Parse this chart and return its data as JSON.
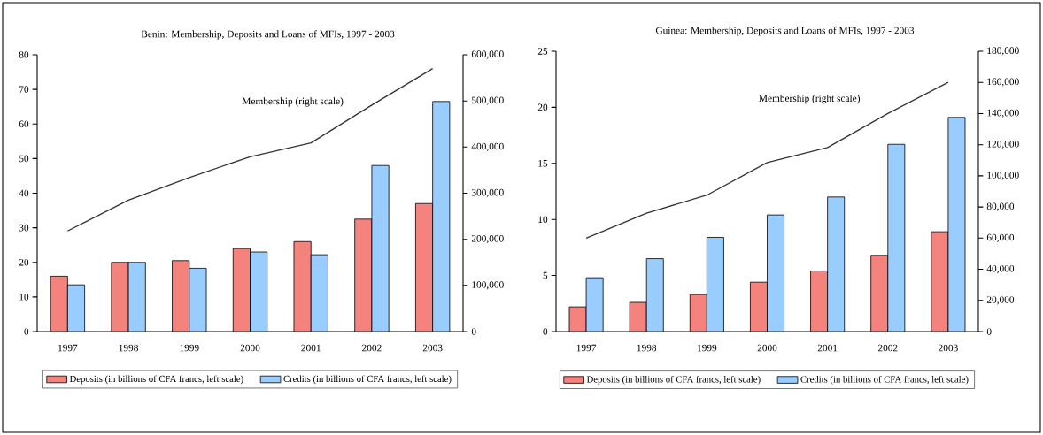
{
  "chart_data": [
    {
      "type": "bar",
      "title": "Benin: Membership, Deposits and Loans of MFIs, 1997 - 2003",
      "categories": [
        "1997",
        "1998",
        "1999",
        "2000",
        "2001",
        "2002",
        "2003"
      ],
      "series": [
        {
          "name": "Deposits (in billions of CFA francs, left scale)",
          "color": "#f4837d",
          "values": [
            16,
            20,
            20.5,
            24,
            26,
            32.5,
            37
          ]
        },
        {
          "name": "Credits (in billions of CFA francs, left scale)",
          "color": "#99ccff",
          "values": [
            13.5,
            20,
            18.3,
            23,
            22.2,
            48,
            66.5
          ]
        },
        {
          "name": "Membership (right scale)",
          "type": "line",
          "axis": "y2",
          "color": "#333333",
          "values": [
            218000,
            285000,
            334000,
            379000,
            409000,
            491000,
            570000
          ]
        }
      ],
      "ylim": [
        0,
        80
      ],
      "yticks": [
        0,
        10,
        20,
        30,
        40,
        50,
        60,
        70,
        80
      ],
      "y2lim": [
        0,
        600000
      ],
      "y2ticks": [
        {
          "value": 0,
          "label": "0"
        },
        {
          "value": 100000,
          "label": "100,000"
        },
        {
          "value": 200000,
          "label": "200,000"
        },
        {
          "value": 300000,
          "label": "300,000"
        },
        {
          "value": 400000,
          "label": "400,000"
        },
        {
          "value": 500000,
          "label": "500,000"
        },
        {
          "value": 600000,
          "label": "600,000"
        }
      ],
      "legend": "bottom"
    },
    {
      "type": "bar",
      "title": "Guinea: Membership, Deposits and Loans of MFIs, 1997 - 2003",
      "categories": [
        "1997",
        "1998",
        "1999",
        "2000",
        "2001",
        "2002",
        "2003"
      ],
      "series": [
        {
          "name": "Deposits (in billions of CFA francs, left scale)",
          "color": "#f4837d",
          "values": [
            2.2,
            2.6,
            3.3,
            4.4,
            5.4,
            6.8,
            8.9
          ]
        },
        {
          "name": "Credits (in billions of CFA francs, left scale)",
          "color": "#99ccff",
          "values": [
            4.8,
            6.5,
            8.4,
            10.4,
            12.0,
            16.7,
            19.1
          ]
        },
        {
          "name": "Membership (right scale)",
          "type": "line",
          "axis": "y2",
          "color": "#333333",
          "values": [
            60000,
            76000,
            87600,
            108500,
            118200,
            140000,
            160000
          ]
        }
      ],
      "ylim": [
        0,
        25
      ],
      "yticks": [
        0,
        5,
        10,
        15,
        20,
        25
      ],
      "y2lim": [
        0,
        180000
      ],
      "y2ticks": [
        {
          "value": 0,
          "label": "0"
        },
        {
          "value": 20000,
          "label": "20,000"
        },
        {
          "value": 40000,
          "label": "40,000"
        },
        {
          "value": 60000,
          "label": "60,000"
        },
        {
          "value": 80000,
          "label": "80,000"
        },
        {
          "value": 100000,
          "label": "100,000"
        },
        {
          "value": 120000,
          "label": "120,000"
        },
        {
          "value": 140000,
          "label": "140,000"
        },
        {
          "value": 160000,
          "label": "160,000"
        },
        {
          "value": 180000,
          "label": "180,000"
        }
      ],
      "legend": "bottom"
    }
  ]
}
